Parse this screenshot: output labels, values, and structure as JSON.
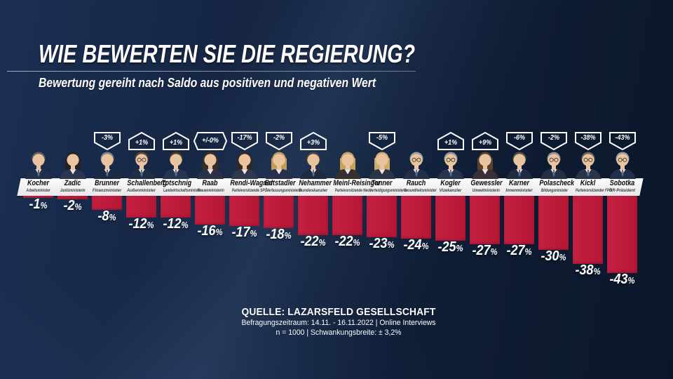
{
  "header": {
    "title": "WIE BEWERTEN SIE DIE REGIERUNG?",
    "subtitle": "Bewertung gereiht nach Saldo aus positiven und negativen Wert"
  },
  "chart_data": {
    "type": "bar",
    "title": "Wie bewerten Sie die Regierung?",
    "subtitle": "Bewertung gereiht nach Saldo aus positiven und negativen Wert",
    "unit": "%",
    "ylim": [
      -45,
      0
    ],
    "bar_color": "#bf1a3b",
    "badge_note": "hexagon/pennant badges above columns show change vs. previous survey",
    "people": [
      {
        "name": "Kocher",
        "role": "Arbeitsminister",
        "value": -1,
        "change": null,
        "avatar": {
          "g": "m",
          "hair": "#6e6258",
          "glasses": false,
          "suit": "#20304a"
        }
      },
      {
        "name": "Zadic",
        "role": "Justizministerin",
        "value": -2,
        "change": null,
        "avatar": {
          "g": "f",
          "hair": "#26211f",
          "glasses": false,
          "suit": "#2a3550"
        }
      },
      {
        "name": "Brunner",
        "role": "Finanzminister",
        "value": -8,
        "change": {
          "label": "-3%",
          "dir": "down"
        },
        "avatar": {
          "g": "m",
          "hair": "#7d8389",
          "glasses": false,
          "suit": "#1d2b42"
        }
      },
      {
        "name": "Schallenberg",
        "role": "Außenminister",
        "value": -12,
        "change": {
          "label": "+1%",
          "dir": "up"
        },
        "avatar": {
          "g": "m",
          "hair": "#55483c",
          "glasses": true,
          "suit": "#222e44"
        }
      },
      {
        "name": "Totschnig",
        "role": "Landwirtschaftsminister",
        "value": -12,
        "change": {
          "label": "+1%",
          "dir": "up"
        },
        "avatar": {
          "g": "m",
          "hair": "#4a3a2c",
          "glasses": false,
          "suit": "#263550"
        }
      },
      {
        "name": "Raab",
        "role": "Frauenministerin",
        "value": -16,
        "change": {
          "label": "+/-0%",
          "dir": "hex"
        },
        "avatar": {
          "g": "f",
          "hair": "#3a2d24",
          "glasses": false,
          "suit": "#2b3246"
        }
      },
      {
        "name": "Rendi-Wagner",
        "role": "Parteivorsitzende SPÖ",
        "value": -17,
        "change": {
          "label": "-17%",
          "dir": "down"
        },
        "avatar": {
          "g": "f",
          "hair": "#33281f",
          "glasses": false,
          "suit": "#30384c"
        }
      },
      {
        "name": "Edtstadler",
        "role": "Verfassungsministerin",
        "value": -18,
        "change": {
          "label": "-2%",
          "dir": "down"
        },
        "avatar": {
          "g": "f",
          "hair": "#c59a56",
          "glasses": false,
          "suit": "#26304a"
        }
      },
      {
        "name": "Nehammer",
        "role": "Bundeskanzler",
        "value": -22,
        "change": {
          "label": "+3%",
          "dir": "up"
        },
        "avatar": {
          "g": "m",
          "hair": "#4e453c",
          "glasses": false,
          "suit": "#1e2a40"
        }
      },
      {
        "name": "Meinl-Reisinger",
        "role": "Parteivorsitzende Neos",
        "value": -22,
        "change": null,
        "avatar": {
          "g": "f",
          "hair": "#c7a35e",
          "glasses": false,
          "suit": "#36302e"
        }
      },
      {
        "name": "Tanner",
        "role": "Verteidigungsministerin",
        "value": -23,
        "change": {
          "label": "-5%",
          "dir": "down"
        },
        "avatar": {
          "g": "f",
          "hair": "#cbae6b",
          "glasses": false,
          "suit": "#2c3448"
        }
      },
      {
        "name": "Rauch",
        "role": "Gesundheitsminister",
        "value": -24,
        "change": null,
        "avatar": {
          "g": "m",
          "hair": "#9aa0a6",
          "glasses": true,
          "suit": "#232f46"
        }
      },
      {
        "name": "Kogler",
        "role": "Vizekanzler",
        "value": -25,
        "change": {
          "label": "+1%",
          "dir": "up"
        },
        "avatar": {
          "g": "m",
          "hair": "#8f9499",
          "glasses": true,
          "suit": "#28344c"
        }
      },
      {
        "name": "Gewessler",
        "role": "Umweltministerin",
        "value": -27,
        "change": {
          "label": "+9%",
          "dir": "up"
        },
        "avatar": {
          "g": "f",
          "hair": "#5a3f2a",
          "glasses": false,
          "suit": "#3a2f34"
        }
      },
      {
        "name": "Karner",
        "role": "Innenminister",
        "value": -27,
        "change": {
          "label": "-6%",
          "dir": "down"
        },
        "avatar": {
          "g": "m",
          "hair": "#56504a",
          "glasses": false,
          "suit": "#1f2b42"
        }
      },
      {
        "name": "Polascheck",
        "role": "Bildungsminister",
        "value": -30,
        "change": {
          "label": "-2%",
          "dir": "down"
        },
        "avatar": {
          "g": "m",
          "hair": "#8c9096",
          "glasses": true,
          "suit": "#242e44"
        }
      },
      {
        "name": "Kickl",
        "role": "Parteivorsitzender FPÖ",
        "value": -38,
        "change": {
          "label": "-38%",
          "dir": "down"
        },
        "avatar": {
          "g": "m",
          "hair": "#6e665c",
          "glasses": true,
          "suit": "#2a3448"
        }
      },
      {
        "name": "Sobotka",
        "role": "NR-Präsident",
        "value": -43,
        "change": {
          "label": "-43%",
          "dir": "down"
        },
        "avatar": {
          "g": "m",
          "hair": "#9b9fa3",
          "glasses": true,
          "suit": "#20304a"
        }
      }
    ]
  },
  "source": {
    "line1": "QUELLE:  LAZARSFELD GESELLSCHAFT",
    "line2": "Befragungszeitraum: 14.11. - 16.11.2022 | Online Interviews",
    "line3": "n = 1000 |  Schwankungsbreite: ± 3,2%"
  }
}
